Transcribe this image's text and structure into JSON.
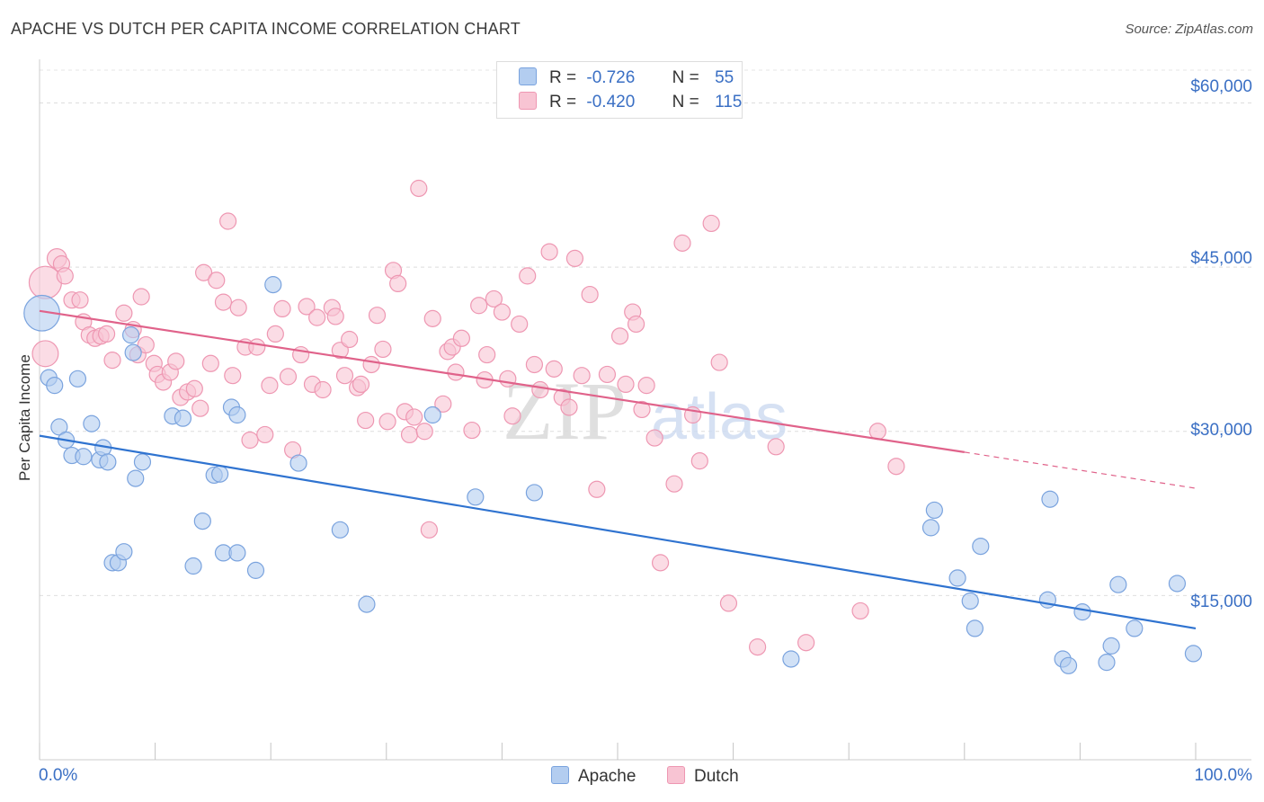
{
  "header": {
    "title": "APACHE VS DUTCH PER CAPITA INCOME CORRELATION CHART",
    "source": "Source: ZipAtlas.com"
  },
  "watermark": {
    "zip": "ZIP",
    "atlas": "atlas"
  },
  "legend": {
    "apache": {
      "r_label": "R =",
      "r_value": "-0.726",
      "n_label": "N =",
      "n_value": "55"
    },
    "dutch": {
      "r_label": "R =",
      "r_value": "-0.420",
      "n_label": "N =",
      "n_value": "115"
    }
  },
  "colors": {
    "apache_fill": "#b3cdf0",
    "apache_stroke": "#7aa3de",
    "apache_line": "#2f73d0",
    "dutch_fill": "#f8c4d3",
    "dutch_stroke": "#ee97b2",
    "dutch_line": "#e0628a",
    "tick_blue": "#3a6fc4"
  },
  "chart_data": {
    "type": "scatter",
    "title": "APACHE VS DUTCH PER CAPITA INCOME CORRELATION CHART",
    "xlabel": "",
    "ylabel": "Per Capita Income",
    "xlim": [
      0,
      100
    ],
    "ylim": [
      0,
      63000
    ],
    "x_tick_labels": [
      "0.0%",
      "100.0%"
    ],
    "y_ticks": [
      15000,
      30000,
      45000,
      60000
    ],
    "y_tick_labels": [
      "$15,000",
      "$30,000",
      "$45,000",
      "$60,000"
    ],
    "grid": true,
    "legend_position": "top-center",
    "series": [
      {
        "name": "Apache",
        "r": -0.726,
        "n": 55,
        "trend": {
          "x0": 0,
          "y0": 29600,
          "x1": 100,
          "y1": 12000
        },
        "points": [
          [
            0.2,
            40800,
            2.2
          ],
          [
            0.8,
            34900,
            1
          ],
          [
            1.3,
            34200,
            1
          ],
          [
            1.7,
            30400,
            1
          ],
          [
            2.3,
            29200,
            1
          ],
          [
            2.8,
            27800,
            1
          ],
          [
            3.3,
            34800,
            1
          ],
          [
            3.8,
            27700,
            1
          ],
          [
            4.5,
            30700,
            1
          ],
          [
            5.2,
            27400,
            1
          ],
          [
            5.5,
            28500,
            1
          ],
          [
            5.9,
            27200,
            1
          ],
          [
            6.3,
            18000,
            1
          ],
          [
            6.8,
            18000,
            1
          ],
          [
            7.3,
            19000,
            1
          ],
          [
            7.9,
            38800,
            1
          ],
          [
            8.1,
            37200,
            1
          ],
          [
            8.3,
            25700,
            1
          ],
          [
            8.9,
            27200,
            1
          ],
          [
            11.5,
            31400,
            1
          ],
          [
            12.4,
            31200,
            1
          ],
          [
            13.3,
            17700,
            1
          ],
          [
            14.1,
            21800,
            1
          ],
          [
            15.1,
            26000,
            1
          ],
          [
            15.6,
            26100,
            1
          ],
          [
            15.9,
            18900,
            1
          ],
          [
            16.6,
            32200,
            1
          ],
          [
            17.1,
            31500,
            1
          ],
          [
            17.1,
            18900,
            1
          ],
          [
            18.7,
            17300,
            1
          ],
          [
            20.2,
            43400,
            1
          ],
          [
            22.4,
            27100,
            1
          ],
          [
            26.0,
            21000,
            1
          ],
          [
            28.3,
            14200,
            1
          ],
          [
            34.0,
            31500,
            1
          ],
          [
            37.7,
            24000,
            1
          ],
          [
            42.8,
            24400,
            1
          ],
          [
            65.0,
            9200,
            1
          ],
          [
            77.1,
            21200,
            1
          ],
          [
            77.4,
            22800,
            1
          ],
          [
            79.4,
            16600,
            1
          ],
          [
            80.5,
            14500,
            1
          ],
          [
            80.9,
            12000,
            1
          ],
          [
            81.4,
            19500,
            1
          ],
          [
            87.4,
            23800,
            1
          ],
          [
            87.2,
            14600,
            1
          ],
          [
            88.5,
            9200,
            1
          ],
          [
            89.0,
            8600,
            1
          ],
          [
            90.2,
            13500,
            1
          ],
          [
            92.3,
            8900,
            1
          ],
          [
            92.7,
            10400,
            1
          ],
          [
            93.3,
            16000,
            1
          ],
          [
            94.7,
            12000,
            1
          ],
          [
            98.4,
            16100,
            1
          ],
          [
            99.8,
            9700,
            1
          ]
        ]
      },
      {
        "name": "Dutch",
        "r": -0.42,
        "n": 115,
        "trend": {
          "x0": 0,
          "y0": 41000,
          "x1": 80,
          "y1": 28100,
          "dash_x1": 100,
          "dash_y1": 24800
        },
        "points": [
          [
            0.5,
            43600,
            2
          ],
          [
            0.5,
            37100,
            1.6
          ],
          [
            1.5,
            45800,
            1.2
          ],
          [
            1.9,
            45300,
            1
          ],
          [
            2.2,
            44200,
            1
          ],
          [
            2.8,
            42000,
            1
          ],
          [
            3.5,
            42000,
            1
          ],
          [
            3.8,
            40000,
            1
          ],
          [
            4.3,
            38800,
            1
          ],
          [
            4.8,
            38500,
            1
          ],
          [
            5.3,
            38700,
            1
          ],
          [
            5.8,
            38900,
            1
          ],
          [
            6.3,
            36500,
            1
          ],
          [
            7.3,
            40800,
            1
          ],
          [
            8.1,
            39300,
            1
          ],
          [
            8.5,
            37000,
            1
          ],
          [
            8.8,
            42300,
            1
          ],
          [
            9.2,
            37900,
            1
          ],
          [
            9.9,
            36200,
            1
          ],
          [
            10.2,
            35200,
            1
          ],
          [
            10.7,
            34500,
            1
          ],
          [
            11.3,
            35400,
            1
          ],
          [
            11.8,
            36400,
            1
          ],
          [
            12.2,
            33100,
            1
          ],
          [
            12.8,
            33600,
            1
          ],
          [
            13.4,
            33900,
            1
          ],
          [
            13.9,
            32100,
            1
          ],
          [
            14.2,
            44500,
            1
          ],
          [
            14.8,
            36200,
            1
          ],
          [
            15.3,
            43800,
            1
          ],
          [
            15.9,
            41800,
            1
          ],
          [
            16.3,
            49200,
            1
          ],
          [
            16.7,
            35100,
            1
          ],
          [
            17.2,
            41300,
            1
          ],
          [
            17.8,
            37700,
            1
          ],
          [
            18.2,
            29200,
            1
          ],
          [
            18.8,
            37700,
            1
          ],
          [
            19.5,
            29700,
            1
          ],
          [
            19.9,
            34200,
            1
          ],
          [
            20.4,
            38900,
            1
          ],
          [
            21.0,
            41200,
            1
          ],
          [
            21.5,
            35000,
            1
          ],
          [
            21.9,
            28300,
            1
          ],
          [
            22.6,
            37000,
            1
          ],
          [
            23.1,
            41400,
            1
          ],
          [
            23.6,
            34300,
            1
          ],
          [
            24.0,
            40400,
            1
          ],
          [
            24.5,
            33800,
            1
          ],
          [
            25.3,
            41300,
            1
          ],
          [
            25.6,
            40500,
            1
          ],
          [
            26.0,
            37400,
            1
          ],
          [
            26.4,
            35100,
            1
          ],
          [
            26.8,
            38400,
            1
          ],
          [
            27.5,
            34000,
            1
          ],
          [
            27.8,
            34300,
            1
          ],
          [
            28.2,
            31000,
            1
          ],
          [
            28.7,
            36100,
            1
          ],
          [
            29.2,
            40600,
            1
          ],
          [
            29.7,
            37500,
            1
          ],
          [
            30.1,
            30900,
            1
          ],
          [
            30.6,
            44700,
            1
          ],
          [
            31.0,
            43500,
            1
          ],
          [
            31.6,
            31800,
            1
          ],
          [
            32.0,
            29700,
            1
          ],
          [
            32.4,
            31300,
            1
          ],
          [
            32.8,
            52200,
            1
          ],
          [
            33.3,
            30000,
            1
          ],
          [
            33.7,
            21000,
            1
          ],
          [
            34.0,
            40300,
            1
          ],
          [
            34.9,
            32500,
            1
          ],
          [
            35.3,
            37300,
            1
          ],
          [
            35.7,
            37700,
            1
          ],
          [
            36.0,
            35400,
            1
          ],
          [
            36.5,
            38500,
            1
          ],
          [
            37.4,
            30100,
            1
          ],
          [
            38.0,
            41500,
            1
          ],
          [
            38.5,
            34700,
            1
          ],
          [
            38.7,
            37000,
            1
          ],
          [
            39.3,
            42100,
            1
          ],
          [
            40.0,
            40900,
            1
          ],
          [
            40.5,
            34800,
            1
          ],
          [
            40.9,
            31400,
            1
          ],
          [
            41.5,
            39800,
            1
          ],
          [
            42.2,
            44200,
            1
          ],
          [
            42.8,
            36100,
            1
          ],
          [
            43.3,
            33800,
            1
          ],
          [
            44.1,
            46400,
            1
          ],
          [
            44.5,
            35700,
            1
          ],
          [
            45.2,
            33100,
            1
          ],
          [
            45.8,
            32200,
            1
          ],
          [
            46.3,
            45800,
            1
          ],
          [
            46.9,
            35100,
            1
          ],
          [
            47.6,
            42500,
            1
          ],
          [
            48.2,
            24700,
            1
          ],
          [
            49.1,
            35200,
            1
          ],
          [
            50.2,
            38700,
            1
          ],
          [
            50.7,
            34300,
            1
          ],
          [
            51.3,
            40900,
            1
          ],
          [
            51.6,
            39800,
            1
          ],
          [
            52.1,
            32000,
            1
          ],
          [
            52.5,
            34200,
            1
          ],
          [
            53.2,
            29400,
            1
          ],
          [
            53.7,
            18000,
            1
          ],
          [
            54.9,
            25200,
            1
          ],
          [
            55.6,
            47200,
            1
          ],
          [
            56.5,
            31500,
            1
          ],
          [
            57.1,
            27300,
            1
          ],
          [
            58.1,
            49000,
            1
          ],
          [
            58.8,
            36300,
            1
          ],
          [
            59.6,
            14300,
            1
          ],
          [
            62.1,
            10300,
            1
          ],
          [
            63.7,
            28600,
            1
          ],
          [
            66.3,
            10700,
            1
          ],
          [
            71.0,
            13600,
            1
          ],
          [
            72.5,
            30000,
            1
          ],
          [
            74.1,
            26800,
            1
          ]
        ]
      }
    ]
  }
}
